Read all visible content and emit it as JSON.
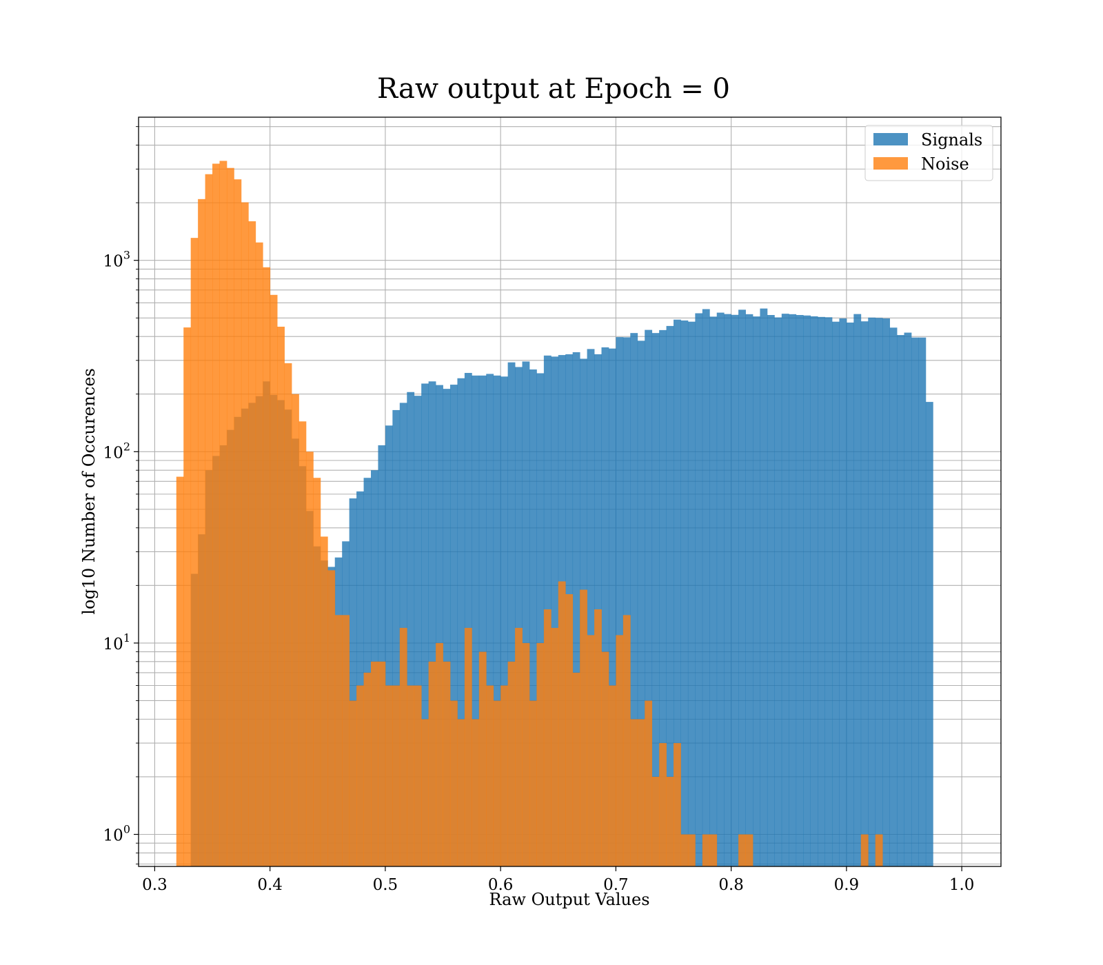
{
  "chart_data": {
    "type": "bar",
    "title": "Raw output at Epoch = 0",
    "xlabel": "Raw Output Values",
    "ylabel": "log10 Number of Occurences",
    "yscale": "log",
    "xlim": [
      0.286,
      1.034
    ],
    "ylim": [
      0.68,
      5600
    ],
    "grid": true,
    "legend_position": "top-right",
    "bin_width": 0.00625,
    "x_ticks": [
      0.3,
      0.4,
      0.5,
      0.6,
      0.7,
      0.8,
      0.9,
      1.0
    ],
    "x_tick_labels": [
      "0.3",
      "0.4",
      "0.5",
      "0.6",
      "0.7",
      "0.8",
      "0.9",
      "1.0"
    ],
    "y_ticks": [
      {
        "value": 1,
        "base": "10",
        "exp": "0"
      },
      {
        "value": 10,
        "base": "10",
        "exp": "1"
      },
      {
        "value": 100,
        "base": "10",
        "exp": "2"
      },
      {
        "value": 1000,
        "base": "10",
        "exp": "3"
      }
    ],
    "series": [
      {
        "name": "Signals",
        "color": "#1f77b4",
        "opacity": 0.8,
        "x_start": 0.33125,
        "values": [
          23,
          37,
          80,
          95,
          108,
          130,
          152,
          168,
          180,
          195,
          233,
          198,
          186,
          166,
          117,
          84,
          49,
          32,
          27,
          25,
          28,
          34,
          57,
          62,
          73,
          80,
          108,
          137,
          165,
          180,
          205,
          196,
          227,
          233,
          223,
          213,
          224,
          242,
          258,
          250,
          250,
          255,
          250,
          247,
          293,
          277,
          296,
          269,
          257,
          318,
          314,
          320,
          323,
          331,
          306,
          344,
          323,
          351,
          346,
          397,
          396,
          417,
          380,
          433,
          417,
          432,
          454,
          490,
          485,
          478,
          529,
          556,
          508,
          533,
          524,
          519,
          552,
          523,
          509,
          560,
          518,
          503,
          526,
          523,
          518,
          515,
          510,
          506,
          504,
          478,
          497,
          473,
          524,
          480,
          502,
          500,
          497,
          445,
          407,
          419,
          395,
          395,
          182
        ]
      },
      {
        "name": "Noise",
        "color": "#ff7f0e",
        "opacity": 0.8,
        "x_start": 0.31875,
        "values": [
          74,
          446,
          1310,
          2090,
          2820,
          3200,
          3310,
          3040,
          2650,
          2010,
          1600,
          1240,
          920,
          660,
          450,
          290,
          200,
          144,
          100,
          73,
          36,
          24,
          14,
          14,
          5,
          6,
          7,
          8,
          8,
          6,
          6,
          12,
          6,
          6,
          4,
          8,
          10,
          8,
          5,
          4,
          12,
          4,
          9,
          6,
          5,
          6,
          8,
          12,
          10,
          5,
          10,
          15,
          12,
          21,
          18,
          7,
          19,
          11,
          15,
          9,
          6,
          11,
          14,
          4,
          4,
          5,
          2,
          3,
          2,
          3,
          1,
          1,
          0,
          1,
          1,
          0,
          0,
          0,
          1,
          1,
          0,
          0,
          0,
          0,
          0,
          0,
          0,
          0,
          0,
          0,
          0,
          0,
          0,
          0,
          0,
          1,
          0,
          1
        ]
      }
    ]
  }
}
